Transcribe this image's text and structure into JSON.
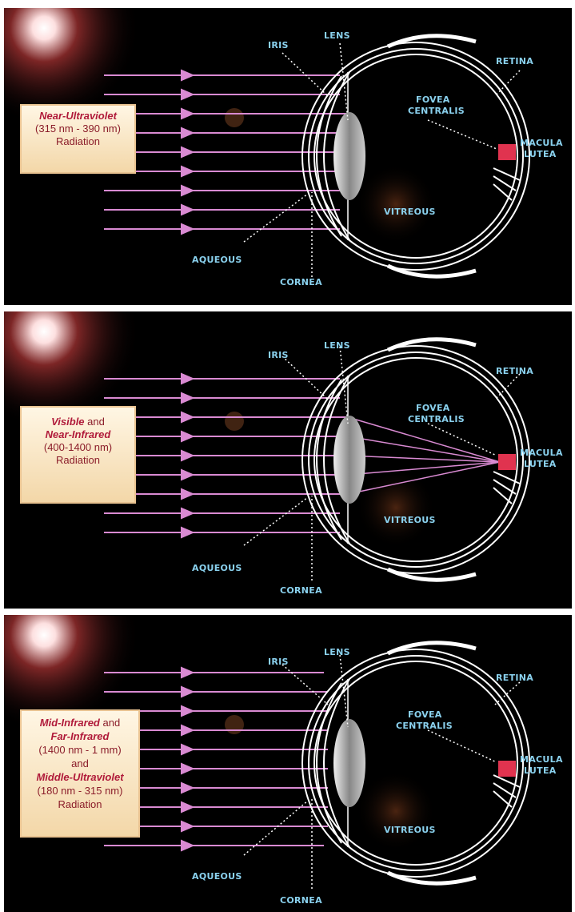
{
  "panels": [
    {
      "radiation_lines": [
        "Near-Ultraviolet",
        "(315 nm - 390 nm)",
        "Radiation"
      ],
      "focused": false
    },
    {
      "radiation_lines": [
        "Visible",
        "and",
        "Near-Infrared",
        "(400-1400 nm)",
        "Radiation"
      ],
      "focused": true
    },
    {
      "radiation_lines": [
        "Mid-Infrared",
        "and",
        "Far-Infrared",
        "(1400 nm - 1 mm)",
        "and",
        "Middle-Ultraviolet",
        "(180 nm - 315 nm)",
        "Radiation"
      ],
      "focused": false
    }
  ],
  "labels": {
    "iris": "IRIS",
    "lens": "LENS",
    "retina": "RETINA",
    "fovea_1": "FOVEA",
    "fovea_2": "CENTRALIS",
    "macula_1": "MACULA",
    "macula_2": "LUTEA",
    "vitreous": "VITREOUS",
    "aqueous": "AQUEOUS",
    "cornea": "CORNEA"
  },
  "colors": {
    "ray": "#d98ad2",
    "eye_line": "#ffffff",
    "label": "#8ad1ee",
    "macula": "#e0334f",
    "box_text": "#b01a3a"
  }
}
